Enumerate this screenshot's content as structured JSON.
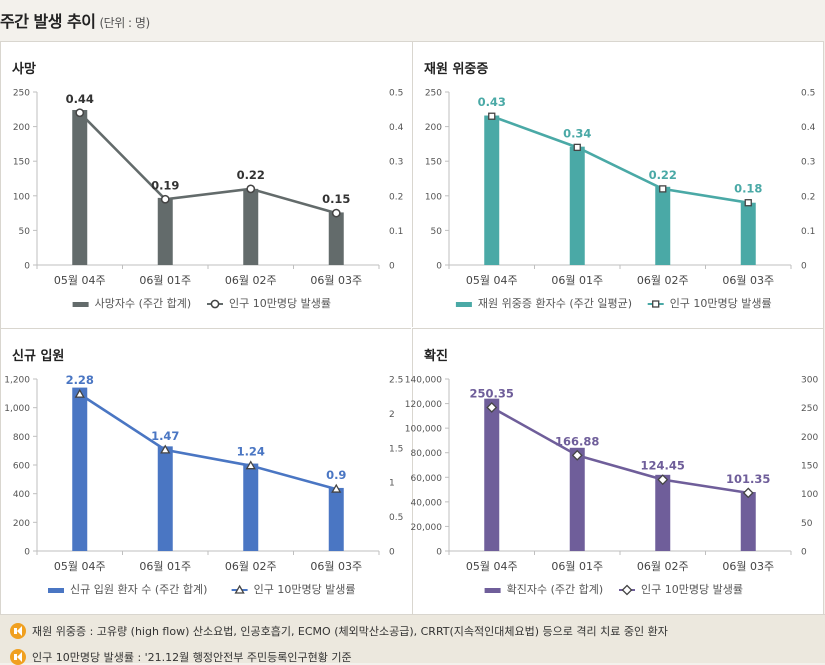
{
  "header": {
    "title": "주간 발생 추이",
    "unit": "(단위 : 명)"
  },
  "colors": {
    "death": "#636b6b",
    "severe": "#4aa9a6",
    "admission": "#4a76c3",
    "confirmed": "#6f5e9a"
  },
  "chart_data": [
    {
      "id": "death",
      "panel_title": "사망",
      "type": "bar+line",
      "categories": [
        "05월 04주",
        "06월 01주",
        "06월 02주",
        "06월 03주"
      ],
      "series": [
        {
          "name": "사망자수 (주간 합계)",
          "kind": "bar",
          "axis": "left",
          "values": [
            224,
            97,
            110,
            76
          ]
        },
        {
          "name": "인구 10만명당 발생률",
          "kind": "line",
          "axis": "right",
          "marker": "circle",
          "values": [
            0.44,
            0.19,
            0.22,
            0.15
          ]
        }
      ],
      "left_ticks": [
        "0",
        "50",
        "100",
        "150",
        "200",
        "250"
      ],
      "right_ticks": [
        "0",
        "0.1",
        "0.2",
        "0.3",
        "0.4",
        "0.5"
      ],
      "ylim_left": [
        0,
        250
      ],
      "ylim_right": [
        0,
        0.5
      ],
      "data_labels": [
        "0.44",
        "0.19",
        "0.22",
        "0.15"
      ],
      "legend": "bottom"
    },
    {
      "id": "severe",
      "panel_title": "재원 위중증",
      "type": "bar+line",
      "categories": [
        "05월 04주",
        "06월 01주",
        "06월 02주",
        "06월 03주"
      ],
      "series": [
        {
          "name": "재원 위중증 환자수 (주간 일평균)",
          "kind": "bar",
          "axis": "left",
          "values": [
            216,
            171,
            113,
            90
          ]
        },
        {
          "name": "인구 10만명당 발생률",
          "kind": "line",
          "axis": "right",
          "marker": "square",
          "values": [
            0.43,
            0.34,
            0.22,
            0.18
          ]
        }
      ],
      "left_ticks": [
        "0",
        "50",
        "100",
        "150",
        "200",
        "250"
      ],
      "right_ticks": [
        "0",
        "0.1",
        "0.2",
        "0.3",
        "0.4",
        "0.5"
      ],
      "ylim_left": [
        0,
        250
      ],
      "ylim_right": [
        0,
        0.5
      ],
      "data_labels": [
        "0.43",
        "0.34",
        "0.22",
        "0.18"
      ],
      "legend": "bottom"
    },
    {
      "id": "admission",
      "panel_title": "신규 입원",
      "type": "bar+line",
      "categories": [
        "05월 04주",
        "06월 01주",
        "06월 02주",
        "06월 03주"
      ],
      "series": [
        {
          "name": "신규 입원 환자 수 (주간 합계)",
          "kind": "bar",
          "axis": "left",
          "values": [
            1140,
            730,
            610,
            440
          ]
        },
        {
          "name": "인구 10만명당 발생률",
          "kind": "line",
          "axis": "right",
          "marker": "triangle",
          "values": [
            2.28,
            1.47,
            1.24,
            0.9
          ]
        }
      ],
      "left_ticks": [
        "0",
        "200",
        "400",
        "600",
        "800",
        "1,000",
        "1,200"
      ],
      "right_ticks": [
        "0",
        "0.5",
        "1",
        "1.5",
        "2",
        "2.5"
      ],
      "ylim_left": [
        0,
        1200
      ],
      "ylim_right": [
        0,
        2.5
      ],
      "data_labels": [
        "2.28",
        "1.47",
        "1.24",
        "0.9"
      ],
      "legend": "bottom"
    },
    {
      "id": "confirmed",
      "panel_title": "확진",
      "type": "bar+line",
      "categories": [
        "05월 04주",
        "06월 01주",
        "06월 02주",
        "06월 03주"
      ],
      "series": [
        {
          "name": "확진자수 (주간 합계)",
          "kind": "bar",
          "axis": "left",
          "values": [
            124000,
            84000,
            62000,
            48000
          ]
        },
        {
          "name": "인구 10만명당 발생률",
          "kind": "line",
          "axis": "right",
          "marker": "diamond",
          "values": [
            250.35,
            166.88,
            124.45,
            101.35
          ]
        }
      ],
      "left_ticks": [
        "0",
        "20,000",
        "40,000",
        "60,000",
        "80,000",
        "100,000",
        "120,000",
        "140,000"
      ],
      "right_ticks": [
        "0",
        "50",
        "100",
        "150",
        "200",
        "250",
        "300"
      ],
      "ylim_left": [
        0,
        140000
      ],
      "ylim_right": [
        0,
        300
      ],
      "data_labels": [
        "250.35",
        "166.88",
        "124.45",
        "101.35"
      ],
      "legend": "bottom"
    }
  ],
  "footnotes": [
    "재원 위중증 : 고유량 (high flow) 산소요법, 인공호흡기, ECMO (체외막산소공급), CRRT(지속적인대체요법) 등으로 격리 치료 중인 환자",
    "인구 10만명당 발생률 : '21.12월 행정안전부 주민등록인구현황 기준"
  ]
}
